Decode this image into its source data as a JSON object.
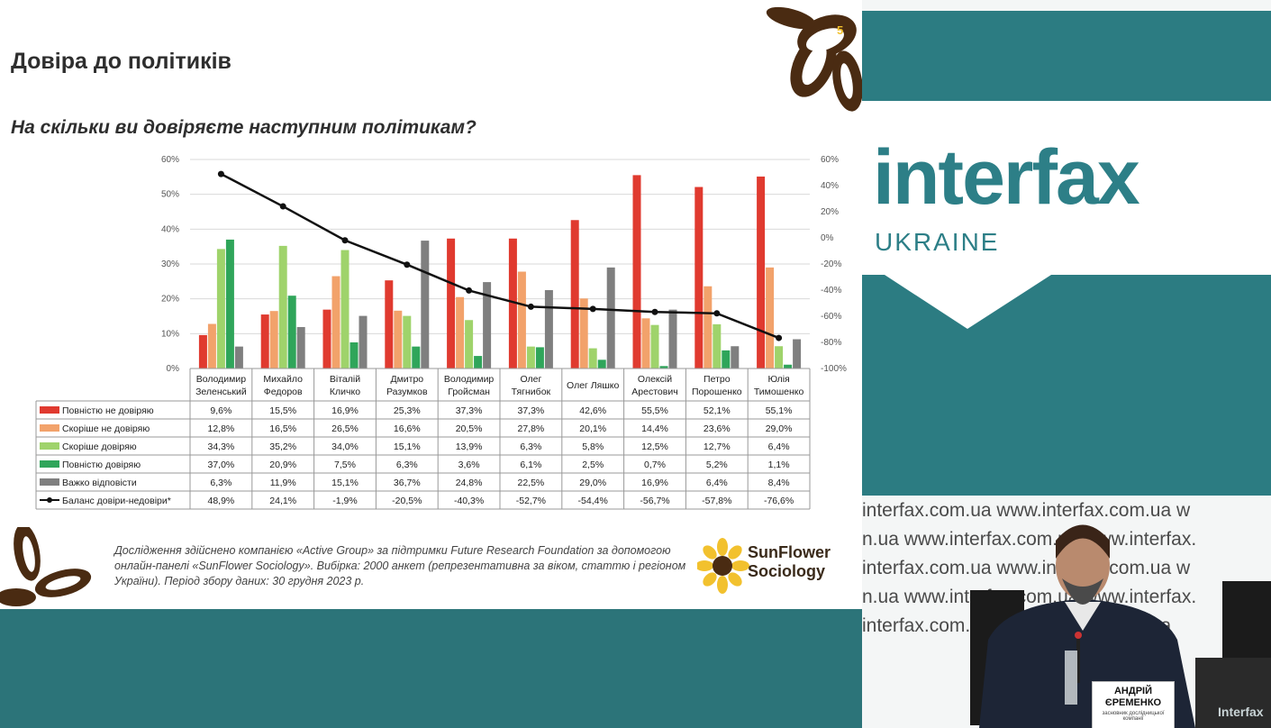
{
  "slide": {
    "page_number": "5",
    "title": "Довіра до політиків",
    "question": "На скільки ви довіряєте наступним політикам?",
    "footnote": "Дослідження здійснено компанією «Active Group» за підтримки Future Research Foundation за допомогою онлайн-панелі «SunFlower Sociology». Вибірка: 2000 анкет (репрезентативна за віком, статтю і регіоном України). Період збору даних: 30 грудня 2023 р.",
    "logo_line1": "SunFlower",
    "logo_line2": "Sociology"
  },
  "chart_data": {
    "type": "bar",
    "categories": [
      [
        "Володимир",
        "Зеленський"
      ],
      [
        "Михайло",
        "Федоров"
      ],
      [
        "Віталій",
        "Кличко"
      ],
      [
        "Дмитро",
        "Разумков"
      ],
      [
        "Володимир",
        "Гройсман"
      ],
      [
        "Олег",
        "Тягнибок"
      ],
      [
        "Олег Ляшко"
      ],
      [
        "Олексій",
        "Арестович"
      ],
      [
        "Петро",
        "Порошенко"
      ],
      [
        "Юлія",
        "Тимошенко"
      ]
    ],
    "left_axis": {
      "ylim": [
        0,
        60
      ],
      "ticks": [
        "0%",
        "10%",
        "20%",
        "30%",
        "40%",
        "50%",
        "60%"
      ]
    },
    "right_axis": {
      "ylim": [
        -100,
        60
      ],
      "ticks": [
        "-100%",
        "-80%",
        "-60%",
        "-40%",
        "-20%",
        "0%",
        "20%",
        "40%",
        "60%"
      ]
    },
    "series": [
      {
        "name": "Повністю не довіряю",
        "color": "#e03a2f",
        "axis": "left",
        "values": [
          9.6,
          15.5,
          16.9,
          25.3,
          37.3,
          37.3,
          42.6,
          55.5,
          52.1,
          55.1
        ],
        "labels": [
          "9,6%",
          "15,5%",
          "16,9%",
          "25,3%",
          "37,3%",
          "37,3%",
          "42,6%",
          "55,5%",
          "52,1%",
          "55,1%"
        ]
      },
      {
        "name": "Скоріше не довіряю",
        "color": "#f2a26b",
        "axis": "left",
        "values": [
          12.8,
          16.5,
          26.5,
          16.6,
          20.5,
          27.8,
          20.1,
          14.4,
          23.6,
          29.0
        ],
        "labels": [
          "12,8%",
          "16,5%",
          "26,5%",
          "16,6%",
          "20,5%",
          "27,8%",
          "20,1%",
          "14,4%",
          "23,6%",
          "29,0%"
        ]
      },
      {
        "name": "Скоріше довіряю",
        "color": "#9fd36b",
        "axis": "left",
        "values": [
          34.3,
          35.2,
          34.0,
          15.1,
          13.9,
          6.3,
          5.8,
          12.5,
          12.7,
          6.4
        ],
        "labels": [
          "34,3%",
          "35,2%",
          "34,0%",
          "15,1%",
          "13,9%",
          "6,3%",
          "5,8%",
          "12,5%",
          "12,7%",
          "6,4%"
        ]
      },
      {
        "name": "Повністю довіряю",
        "color": "#2fa55a",
        "axis": "left",
        "values": [
          37.0,
          20.9,
          7.5,
          6.3,
          3.6,
          6.1,
          2.5,
          0.7,
          5.2,
          1.1
        ],
        "labels": [
          "37,0%",
          "20,9%",
          "7,5%",
          "6,3%",
          "3,6%",
          "6,1%",
          "2,5%",
          "0,7%",
          "5,2%",
          "1,1%"
        ]
      },
      {
        "name": "Важко відповісти",
        "color": "#7f7f7f",
        "axis": "left",
        "values": [
          6.3,
          11.9,
          15.1,
          36.7,
          24.8,
          22.5,
          29.0,
          16.9,
          6.4,
          8.4
        ],
        "labels": [
          "6,3%",
          "11,9%",
          "15,1%",
          "36,7%",
          "24,8%",
          "22,5%",
          "29,0%",
          "16,9%",
          "6,4%",
          "8,4%"
        ]
      },
      {
        "name": "Баланс довіри-недовіри*",
        "color": "#111111",
        "axis": "right",
        "kind": "line",
        "values": [
          48.9,
          24.1,
          -1.9,
          -20.5,
          -40.3,
          -52.7,
          -54.4,
          -56.7,
          -57.8,
          -76.6
        ],
        "labels": [
          "48,9%",
          "24,1%",
          "-1,9%",
          "-20,5%",
          "-40,3%",
          "-52,7%",
          "-54,4%",
          "-56,7%",
          "-57,8%",
          "-76,6%"
        ]
      }
    ],
    "grid": true,
    "legend": "data-table-below"
  },
  "broadcast": {
    "brand": "interfax",
    "brand_sub": "UKRAINE",
    "watermark_rows": [
      "interfax.com.ua     www.interfax.com.ua     w",
      "n.ua     www.interfax.com.ua     www.interfax.",
      "interfax.com.ua     www.interfax.com.ua     w",
      "n.ua     www.interfax.com.ua     www.interfax.",
      "interfax.com.ua     www.interfax.com.ua"
    ],
    "nameplate_name_1": "АНДРІЙ",
    "nameplate_name_2": "ЄРЕМЕНКО",
    "nameplate_role": "засновник дослідницької компанії",
    "corner_logo": "Interfax"
  }
}
